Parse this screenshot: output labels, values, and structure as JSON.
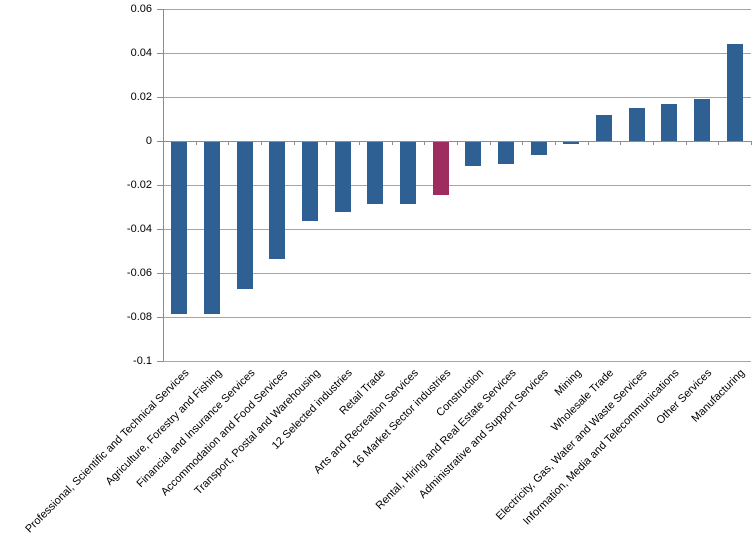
{
  "chart_data": {
    "type": "bar",
    "title": "",
    "xlabel": "",
    "ylabel": "",
    "legend": false,
    "grid": true,
    "ylim": [
      -0.1,
      0.06
    ],
    "y_ticks": [
      0.06,
      0.04,
      0.02,
      0,
      -0.02,
      -0.04,
      -0.06,
      -0.08,
      -0.1
    ],
    "y_tick_labels": [
      "0.06",
      "0.04",
      "0.02",
      "0",
      "-0.02",
      "-0.04",
      "-0.06",
      "-0.08",
      "-0.1"
    ],
    "categories": [
      "Professional, Scientific and Technical Services",
      "Agriculture, Forestry and Fishing",
      "Financial and Insurance Services",
      "Accommodation and Food Services",
      "Transport, Postal and Warehousing",
      "12 Selected industries",
      "Retail Trade",
      "Arts and Recreation Services",
      "16 Market Sector industries",
      "Construction",
      "Rental, Hiring and Real Estate Services",
      "Administrative and Support Services",
      "Mining",
      "Wholesale Trade",
      "Electricity, Gas, Water and Waste Services",
      "Information, Media and Telecommunications",
      "Other Services",
      "Manufacturing"
    ],
    "values": [
      -0.078,
      -0.078,
      -0.067,
      -0.053,
      -0.036,
      -0.032,
      -0.028,
      -0.028,
      -0.024,
      -0.011,
      -0.01,
      -0.006,
      -0.001,
      0.012,
      0.015,
      0.017,
      0.019,
      0.044
    ],
    "highlight_index": 8,
    "colors": {
      "bar": "#2f6093",
      "highlight": "#9e2c5f",
      "gridline": "#a6a6a6",
      "axis": "#8c8c8c",
      "text": "#000000",
      "background": "#ffffff"
    }
  }
}
